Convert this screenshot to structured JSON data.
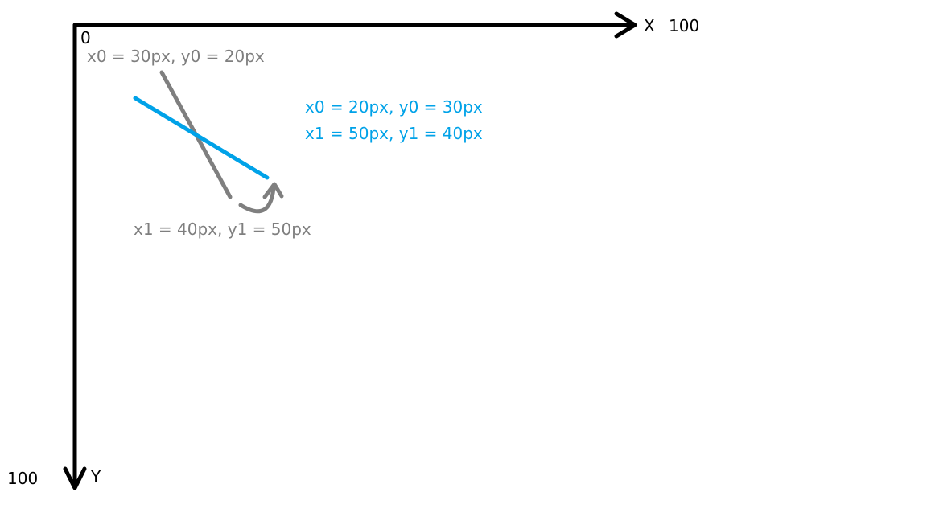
{
  "colors": {
    "axis": "#000000",
    "original_line": "#7f7f7f",
    "rotated_line": "#00a2e8"
  },
  "axes": {
    "origin_label": "0",
    "x_axis_name": "X",
    "x_axis_max": "100",
    "y_axis_name": "Y",
    "y_axis_max": "100"
  },
  "original_line": {
    "start_label": "x0 = 30px, y0 = 20px",
    "end_label": "x1 = 40px, y1 = 50px"
  },
  "rotated_line": {
    "start_label": "x0 = 20px, y0 = 30px",
    "end_label": "x1 = 50px, y1 = 40px"
  },
  "icons": {
    "rotation_arrow": "curved-arrow-icon"
  }
}
